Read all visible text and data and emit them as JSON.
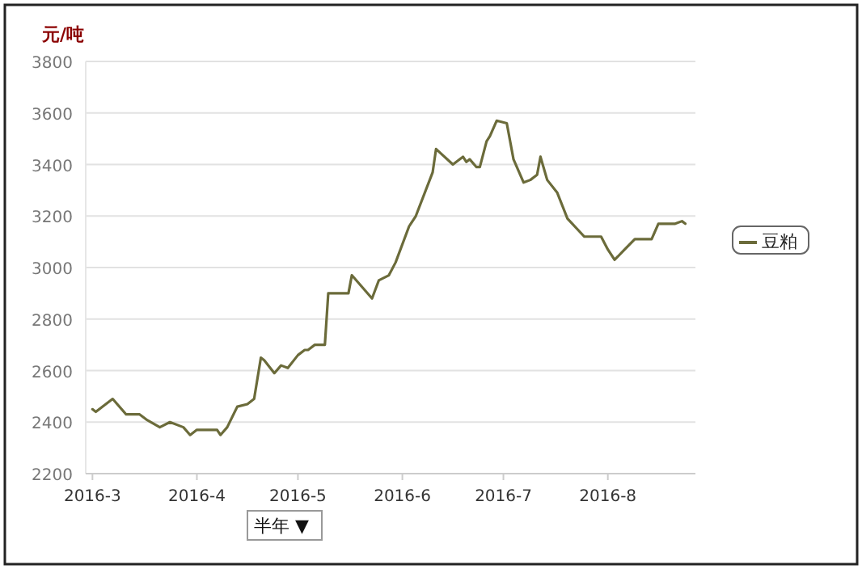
{
  "chart_data": {
    "type": "line",
    "ylabel": "元/吨",
    "legend": "right",
    "grid": "y",
    "annotations": [
      "半年 ▼"
    ],
    "xlim": [
      "2016-02-28",
      "2016-08-27"
    ],
    "xticks": [
      {
        "value": "2016-03-01",
        "label": "2016-3"
      },
      {
        "value": "2016-04-01",
        "label": "2016-4"
      },
      {
        "value": "2016-05-01",
        "label": "2016-5"
      },
      {
        "value": "2016-06-01",
        "label": "2016-6"
      },
      {
        "value": "2016-07-01",
        "label": "2016-7"
      },
      {
        "value": "2016-08-01",
        "label": "2016-8"
      }
    ],
    "ylim": [
      2200,
      3800
    ],
    "yticks": [
      2200,
      2400,
      2600,
      2800,
      3000,
      3200,
      3400,
      3600,
      3800
    ],
    "series": [
      {
        "name": "豆粕",
        "color": "#6b6b3a",
        "x": [
          "2016-03-01",
          "2016-03-02",
          "2016-03-07",
          "2016-03-11",
          "2016-03-15",
          "2016-03-17",
          "2016-03-21",
          "2016-03-24",
          "2016-03-28",
          "2016-03-30",
          "2016-04-01",
          "2016-04-07",
          "2016-04-08",
          "2016-04-10",
          "2016-04-13",
          "2016-04-16",
          "2016-04-18",
          "2016-04-20",
          "2016-04-21",
          "2016-04-24",
          "2016-04-26",
          "2016-04-28",
          "2016-05-01",
          "2016-05-03",
          "2016-05-04",
          "2016-05-06",
          "2016-05-07",
          "2016-05-09",
          "2016-05-10",
          "2016-05-16",
          "2016-05-17",
          "2016-05-23",
          "2016-05-25",
          "2016-05-28",
          "2016-05-30",
          "2016-06-03",
          "2016-06-05",
          "2016-06-10",
          "2016-06-11",
          "2016-06-16",
          "2016-06-19",
          "2016-06-20",
          "2016-06-21",
          "2016-06-23",
          "2016-06-24",
          "2016-06-26",
          "2016-06-27",
          "2016-06-29",
          "2016-07-02",
          "2016-07-04",
          "2016-07-07",
          "2016-07-09",
          "2016-07-11",
          "2016-07-12",
          "2016-07-14",
          "2016-07-17",
          "2016-07-20",
          "2016-07-25",
          "2016-07-27",
          "2016-07-29",
          "2016-07-30",
          "2016-08-01",
          "2016-08-03",
          "2016-08-06",
          "2016-08-09",
          "2016-08-14",
          "2016-08-16",
          "2016-08-18",
          "2016-08-21",
          "2016-08-23",
          "2016-08-24"
        ],
        "values": [
          2450,
          2440,
          2490,
          2430,
          2430,
          2410,
          2380,
          2400,
          2380,
          2350,
          2370,
          2370,
          2350,
          2380,
          2460,
          2470,
          2490,
          2650,
          2640,
          2590,
          2620,
          2610,
          2660,
          2680,
          2680,
          2700,
          2700,
          2700,
          2900,
          2900,
          2970,
          2880,
          2950,
          2970,
          3020,
          3160,
          3200,
          3370,
          3460,
          3400,
          3430,
          3410,
          3420,
          3390,
          3390,
          3490,
          3510,
          3570,
          3560,
          3420,
          3330,
          3340,
          3360,
          3430,
          3340,
          3290,
          3190,
          3120,
          3120,
          3120,
          3120,
          3070,
          3030,
          3070,
          3110,
          3110,
          3170,
          3170,
          3170,
          3180,
          3170
        ]
      }
    ]
  }
}
